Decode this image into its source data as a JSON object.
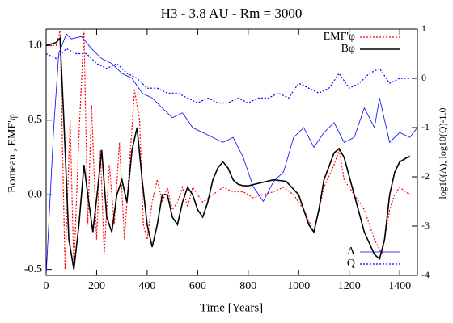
{
  "chart_data": {
    "type": "line",
    "title": "H3 - 3.8 AU - Rm = 3000",
    "xlabel": "Time [Years]",
    "ylabel": "Bφmean , EMF'φ",
    "y2label": "log10(Λ), log10(Q)-1.0",
    "xlim": [
      0,
      1470
    ],
    "xticks": [
      0,
      200,
      400,
      600,
      800,
      1000,
      1200,
      1400
    ],
    "ylim": [
      -0.54,
      1.11
    ],
    "yticks": [
      {
        "value": -0.5,
        "label": "-0.5"
      },
      {
        "value": 0,
        "label": "0.0"
      },
      {
        "value": 0.5,
        "label": "0.5"
      },
      {
        "value": 1,
        "label": "1.0"
      }
    ],
    "y2lim": [
      -4,
      1
    ],
    "y2ticks": [
      -4,
      -3,
      -2,
      -1,
      0,
      1
    ],
    "series": [
      {
        "name": "EMF'φ",
        "color": "#ff0000",
        "style": "dotted",
        "legend": "upper right",
        "x": [
          0,
          40,
          55,
          65,
          75,
          95,
          110,
          130,
          150,
          165,
          180,
          200,
          215,
          230,
          250,
          270,
          290,
          310,
          330,
          350,
          370,
          385,
          400,
          420,
          440,
          460,
          480,
          500,
          520,
          540,
          560,
          580,
          600,
          620,
          660,
          700,
          740,
          780,
          820,
          860,
          900,
          940,
          980,
          1020,
          1060,
          1100,
          1140,
          1160,
          1180,
          1220,
          1260,
          1300,
          1330,
          1360,
          1380,
          1400,
          1440
        ],
        "values": [
          1.0,
          1.0,
          1.1,
          0.3,
          -0.5,
          0.5,
          -0.5,
          0.4,
          1.1,
          -0.2,
          0.6,
          -0.3,
          0.3,
          -0.4,
          0.2,
          -0.2,
          0.35,
          -0.3,
          0.2,
          0.7,
          0.5,
          -0.2,
          -0.3,
          -0.05,
          0.1,
          -0.05,
          0.05,
          -0.1,
          -0.05,
          0.05,
          -0.08,
          0.05,
          0.0,
          -0.05,
          0.0,
          0.05,
          0.02,
          0.02,
          -0.02,
          0.0,
          0.02,
          0.05,
          0.0,
          -0.1,
          -0.25,
          0.05,
          0.2,
          0.3,
          0.1,
          0.0,
          -0.1,
          -0.3,
          -0.4,
          -0.1,
          0.0,
          0.05,
          0.0
        ]
      },
      {
        "name": "Bφ",
        "color": "#000000",
        "style": "solid",
        "legend": "upper right",
        "x": [
          0,
          40,
          55,
          70,
          90,
          110,
          130,
          150,
          165,
          185,
          205,
          220,
          240,
          260,
          280,
          300,
          320,
          340,
          360,
          380,
          400,
          420,
          440,
          460,
          480,
          500,
          520,
          540,
          560,
          580,
          600,
          620,
          640,
          660,
          680,
          700,
          720,
          740,
          760,
          780,
          800,
          850,
          900,
          950,
          1000,
          1040,
          1060,
          1080,
          1100,
          1140,
          1160,
          1180,
          1220,
          1260,
          1300,
          1320,
          1340,
          1360,
          1380,
          1400,
          1440
        ],
        "values": [
          1.0,
          1.02,
          1.05,
          0.5,
          -0.3,
          -0.5,
          -0.2,
          0.2,
          0.0,
          -0.25,
          0.05,
          0.3,
          -0.15,
          -0.25,
          0.0,
          0.1,
          -0.05,
          0.3,
          0.45,
          0.1,
          -0.2,
          -0.35,
          -0.2,
          0.0,
          0.0,
          -0.15,
          -0.2,
          -0.05,
          0.05,
          0.0,
          -0.1,
          -0.15,
          -0.05,
          0.1,
          0.18,
          0.22,
          0.18,
          0.1,
          0.07,
          0.06,
          0.06,
          0.08,
          0.1,
          0.09,
          0.0,
          -0.2,
          -0.25,
          -0.1,
          0.1,
          0.28,
          0.31,
          0.25,
          0.0,
          -0.25,
          -0.4,
          -0.43,
          -0.3,
          0.0,
          0.15,
          0.22,
          0.26
        ]
      },
      {
        "name": "Λ",
        "color": "#0000ff",
        "style": "solid",
        "legend": "lower right",
        "axis": "y2",
        "x": [
          0,
          30,
          50,
          80,
          100,
          140,
          180,
          220,
          260,
          300,
          340,
          380,
          420,
          460,
          500,
          540,
          580,
          620,
          660,
          700,
          740,
          780,
          820,
          860,
          900,
          940,
          980,
          1020,
          1060,
          1100,
          1140,
          1180,
          1220,
          1260,
          1300,
          1320,
          1360,
          1400,
          1440,
          1470
        ],
        "values": [
          -4,
          -1,
          0.5,
          0.9,
          0.8,
          0.85,
          0.6,
          0.4,
          0.3,
          0.1,
          0.0,
          -0.3,
          -0.4,
          -0.6,
          -0.8,
          -0.7,
          -1.0,
          -1.1,
          -1.2,
          -1.3,
          -1.2,
          -1.6,
          -2.2,
          -2.5,
          -2.1,
          -1.9,
          -1.2,
          -1.0,
          -1.4,
          -1.1,
          -0.9,
          -1.3,
          -1.2,
          -0.6,
          -1.0,
          -0.4,
          -1.3,
          -1.1,
          -1.2,
          -1.0
        ]
      },
      {
        "name": "Q",
        "color": "#0000ff",
        "style": "dotted",
        "legend": "lower right",
        "axis": "y2",
        "x": [
          0,
          40,
          80,
          120,
          160,
          200,
          240,
          280,
          320,
          360,
          400,
          440,
          480,
          520,
          560,
          600,
          640,
          680,
          720,
          760,
          800,
          840,
          880,
          920,
          960,
          1000,
          1040,
          1080,
          1120,
          1160,
          1200,
          1240,
          1280,
          1320,
          1360,
          1400,
          1440
        ],
        "values": [
          0.5,
          0.4,
          0.6,
          0.5,
          0.5,
          0.3,
          0.2,
          0.3,
          0.1,
          0.0,
          -0.2,
          -0.2,
          -0.3,
          -0.3,
          -0.4,
          -0.5,
          -0.4,
          -0.5,
          -0.5,
          -0.4,
          -0.5,
          -0.4,
          -0.4,
          -0.3,
          -0.4,
          -0.1,
          -0.2,
          -0.3,
          -0.2,
          0.1,
          -0.2,
          -0.1,
          0.1,
          0.2,
          -0.1,
          0.0,
          0.0
        ]
      }
    ]
  }
}
